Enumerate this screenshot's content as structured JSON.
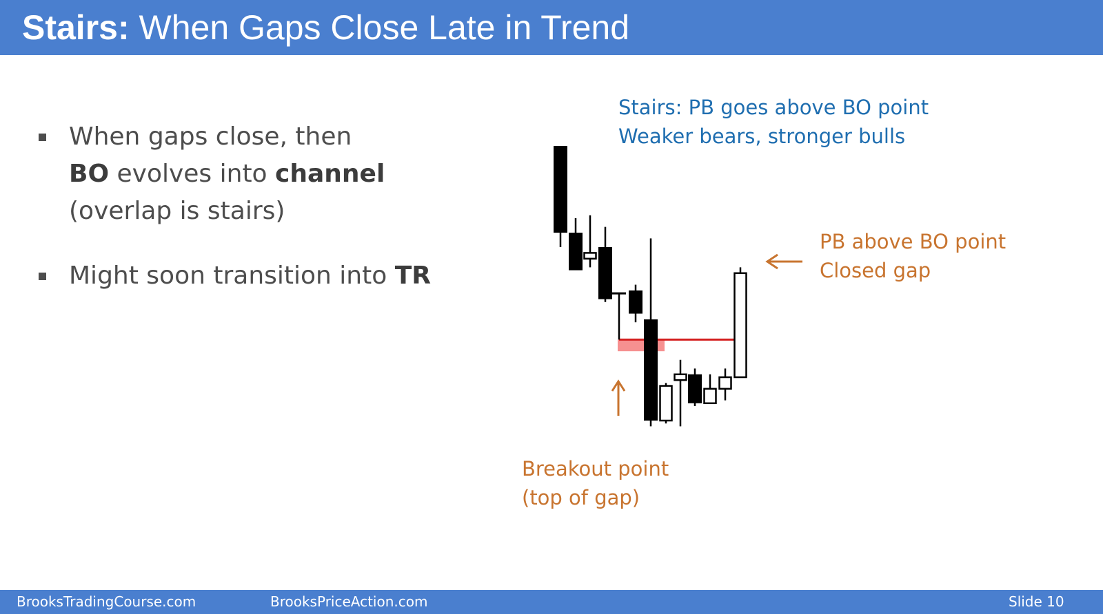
{
  "title": {
    "bold": "Stairs:",
    "rest": "When Gaps Close Late in Trend"
  },
  "bullets": [
    {
      "lines": [
        [
          {
            "t": "When gaps close, then",
            "b": false
          }
        ],
        [
          {
            "t": "BO",
            "b": true
          },
          {
            "t": " evolves into ",
            "b": false
          },
          {
            "t": "channel",
            "b": true
          }
        ],
        [
          {
            "t": "(overlap is stairs)",
            "b": false
          }
        ]
      ]
    },
    {
      "lines": [
        [
          {
            "t": "Might soon transition into ",
            "b": false
          },
          {
            "t": "TR",
            "b": true
          }
        ]
      ]
    }
  ],
  "notes": {
    "stairs": {
      "line1": "Stairs: PB goes above BO point",
      "line2": "Weaker bears, stronger bulls"
    },
    "pb": {
      "line1": "PB above BO point",
      "line2": "Closed gap"
    },
    "breakout": {
      "line1": "Breakout point",
      "line2": "(top of gap)"
    }
  },
  "footer": {
    "left": "BrooksTradingCourse.com",
    "center": "BrooksPriceAction.com",
    "slide": "Slide  10"
  },
  "colors": {
    "title_bar": "#4a7fcf",
    "bullet_text": "#4d4d4d",
    "blue_note": "#1f6eb0",
    "orange_note": "#c8742f",
    "breakout_line": "#d42020",
    "gap_zone": "#f47c7c"
  },
  "chart_data": {
    "type": "candlestick",
    "description_units": "relative price (no axis printed)",
    "bars": [
      {
        "open": 100,
        "high": 100,
        "low": 65,
        "close": 70
      },
      {
        "open": 70,
        "high": 75,
        "low": 62,
        "close": 57
      },
      {
        "open": 61,
        "high": 76,
        "low": 58,
        "close": 63
      },
      {
        "open": 65,
        "high": 72,
        "low": 46,
        "close": 47
      },
      {
        "open": 49,
        "high": 49,
        "low": 33,
        "close": 49
      },
      {
        "open": 50,
        "high": 52,
        "low": 39,
        "close": 42
      },
      {
        "open": 40,
        "high": 68,
        "low": 3,
        "close": 5
      },
      {
        "open": 5,
        "high": 18,
        "low": 4,
        "close": 17
      },
      {
        "open": 19,
        "high": 26,
        "low": 3,
        "close": 21
      },
      {
        "open": 21,
        "high": 23,
        "low": 10,
        "close": 11
      },
      {
        "open": 11,
        "high": 21,
        "low": 12,
        "close": 16
      },
      {
        "open": 16,
        "high": 23,
        "low": 12,
        "close": 20
      },
      {
        "open": 20,
        "high": 58,
        "low": 20,
        "close": 56
      }
    ],
    "breakout_point_price": 33,
    "gap_zone": {
      "from": 29,
      "to": 33
    },
    "annotations": [
      "PB above BO point",
      "Breakout point"
    ]
  }
}
